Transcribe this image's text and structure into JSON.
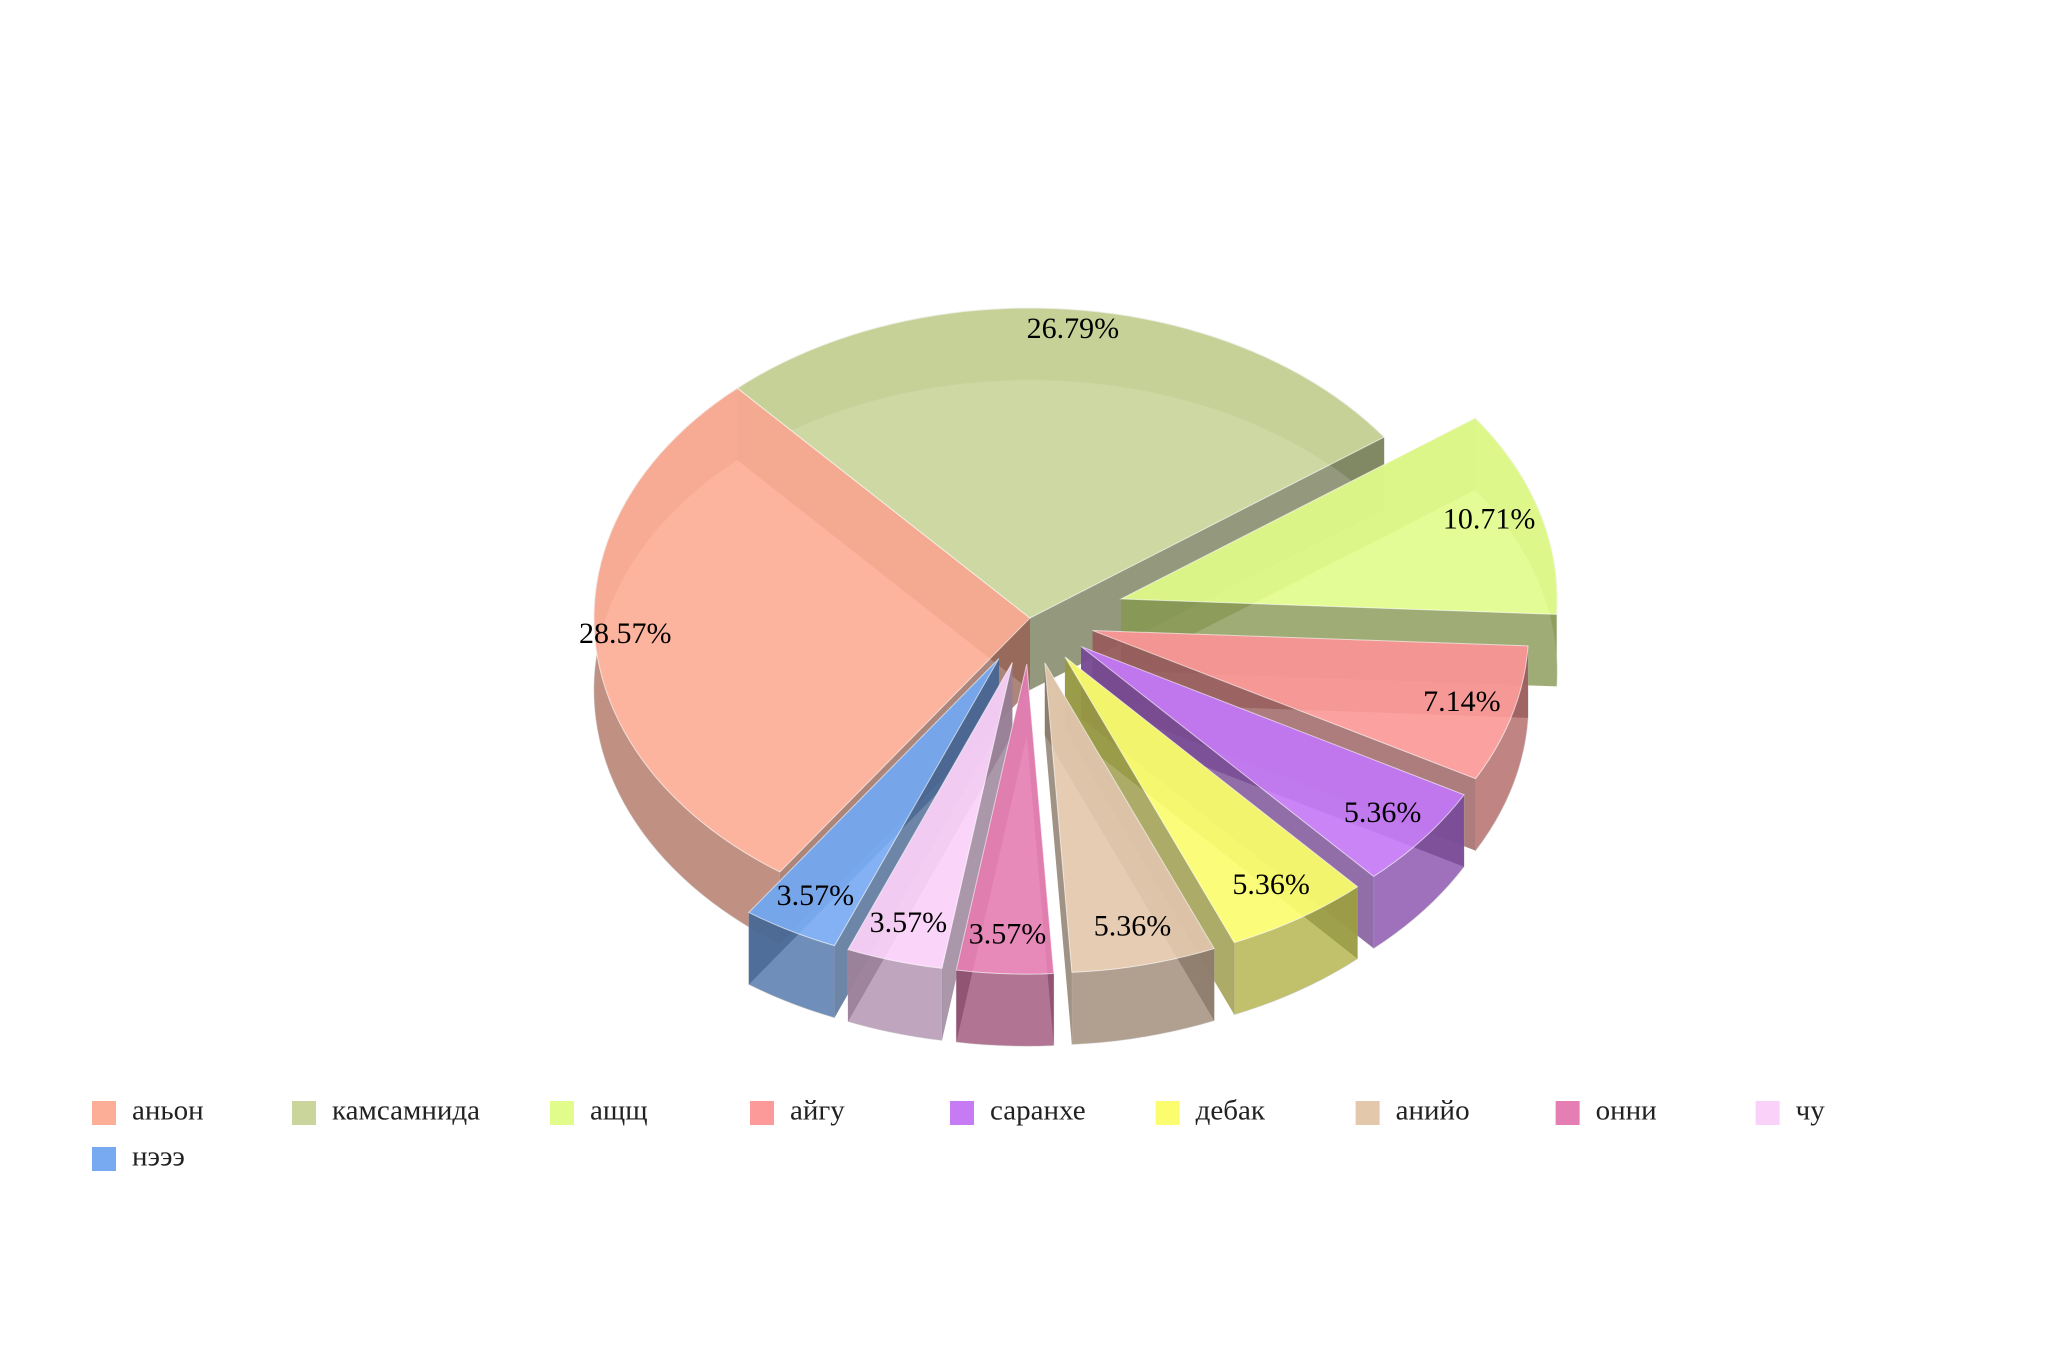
{
  "chart_data": {
    "type": "pie3d",
    "categories": [
      "аньон",
      "камсамнида",
      "ащщ",
      "айгу",
      "саранхе",
      "дебак",
      "анийо",
      "онни",
      "чу",
      "нэээ"
    ],
    "values": [
      28.57,
      26.79,
      10.71,
      7.14,
      5.36,
      5.36,
      5.36,
      3.57,
      3.57,
      3.57
    ],
    "value_labels": [
      "28.57%",
      "26.79%",
      "10.71%",
      "7.14%",
      "5.36%",
      "5.36%",
      "5.36%",
      "3.57%",
      "3.57%",
      "3.57%"
    ],
    "colors": [
      "#fcae96",
      "#c9d59a",
      "#e2fc8c",
      "#fb9a98",
      "#c67af4",
      "#fbfd6f",
      "#e3c8ac",
      "#e57fb3",
      "#fad1f8",
      "#78aaf2"
    ],
    "legend": "bottom"
  }
}
